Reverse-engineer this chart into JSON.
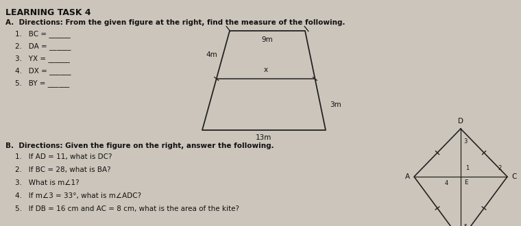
{
  "bg_color": "#ccc5bb",
  "title": "LEARNING TASK 4",
  "section_a_header": "A.  Directions: From the given figure at the right, find the measure of the following.",
  "section_a_items": [
    "1.   BC = ______",
    "2.   DA = ______",
    "3.   YX = ______",
    "4.   DX = ______",
    "5.   BY = ______"
  ],
  "section_b_header": "B.  Directions: Given the figure on the right, answer the following.",
  "section_b_items": [
    "1.   If AD = 11, what is DC?",
    "2.   If BC = 28, what is BA?",
    "3.   What is m∠1?",
    "4.   If m∠3 = 33°, what is m∠ADC?",
    "5.   If DB = 16 cm and AC = 8 cm, what is the area of the kite?"
  ],
  "trap_label_top": "9m",
  "trap_label_mid": "x",
  "trap_label_bot": "13m",
  "trap_label_left": "4m",
  "trap_label_right": "3m"
}
